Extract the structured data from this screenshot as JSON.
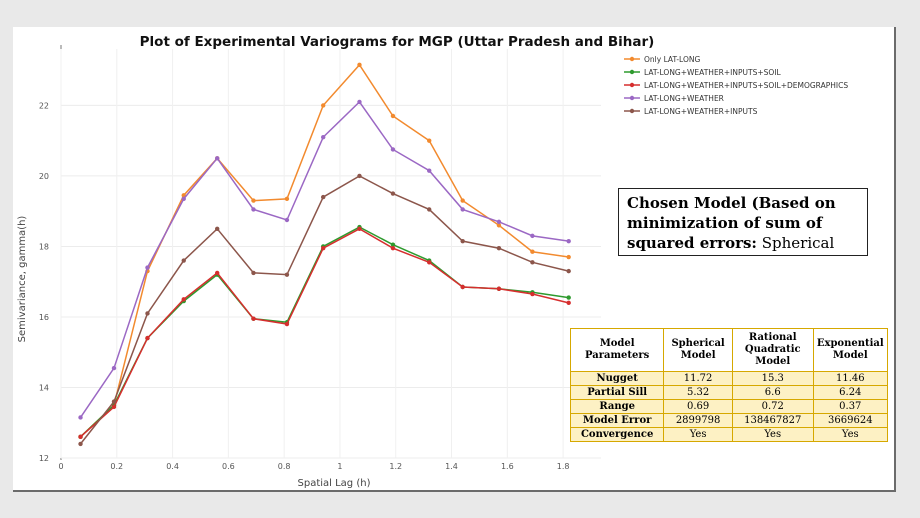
{
  "chart_data": {
    "type": "line",
    "title": "Plot of Experimental Variograms for MGP (Uttar Pradesh and Bihar)",
    "xlabel": "Spatial Lag (h)",
    "ylabel": "Semivariance, gamma(h)",
    "xlim": [
      0,
      1.9
    ],
    "ylim": [
      12,
      23.6
    ],
    "x_ticks": [
      "0",
      "0.2",
      "0.4",
      "0.6",
      "0.8",
      "1",
      "1.2",
      "1.4",
      "1.6",
      "1.8"
    ],
    "y_ticks": [
      "12",
      "14",
      "16",
      "18",
      "20",
      "22"
    ],
    "grid": true,
    "legend_position": "top-right",
    "x": [
      0.07,
      0.19,
      0.31,
      0.44,
      0.56,
      0.69,
      0.81,
      0.94,
      1.07,
      1.19,
      1.32,
      1.44,
      1.57,
      1.69,
      1.82
    ],
    "series": [
      {
        "name": "Only LAT-LONG",
        "color": "#f28a2e",
        "values": [
          12.6,
          13.5,
          17.3,
          19.45,
          20.5,
          19.3,
          19.35,
          22.0,
          23.15,
          21.7,
          21.0,
          19.3,
          18.6,
          17.85,
          17.7
        ]
      },
      {
        "name": "LAT-LONG+WEATHER+INPUTS+SOIL",
        "color": "#2e9a2e",
        "values": [
          12.6,
          13.5,
          15.4,
          16.45,
          17.2,
          15.95,
          15.85,
          18.0,
          18.55,
          18.05,
          17.6,
          16.85,
          16.8,
          16.7,
          16.55
        ]
      },
      {
        "name": "LAT-LONG+WEATHER+INPUTS+SOIL+DEMOGRAPHICS",
        "color": "#d62e2e",
        "values": [
          12.6,
          13.45,
          15.4,
          16.5,
          17.25,
          15.95,
          15.8,
          17.95,
          18.5,
          17.95,
          17.55,
          16.85,
          16.8,
          16.65,
          16.4
        ]
      },
      {
        "name": "LAT-LONG+WEATHER",
        "color": "#9b68c4",
        "values": [
          13.15,
          14.55,
          17.4,
          19.35,
          20.5,
          19.05,
          18.75,
          21.1,
          22.1,
          20.75,
          20.15,
          19.05,
          18.7,
          18.3,
          18.15
        ]
      },
      {
        "name": "LAT-LONG+WEATHER+INPUTS",
        "color": "#8c564b",
        "values": [
          12.4,
          13.6,
          16.1,
          17.6,
          18.5,
          17.25,
          17.2,
          19.4,
          20.0,
          19.5,
          19.05,
          18.15,
          17.95,
          17.55,
          17.3
        ]
      }
    ]
  },
  "chosen_model": {
    "bold_text": "Chosen Model (Based on minimization of sum of squared errors:",
    "normal_text": " Spherical"
  },
  "table": {
    "headers": [
      "Model Parameters",
      "Spherical Model",
      "Rational Quadratic Model",
      "Exponential Model"
    ],
    "rows": [
      [
        "Nugget",
        "11.72",
        "15.3",
        "11.46"
      ],
      [
        "Partial Sill",
        "5.32",
        "6.6",
        "6.24"
      ],
      [
        "Range",
        "0.69",
        "0.72",
        "0.37"
      ],
      [
        "Model Error",
        "2899798",
        "138467827",
        "3669624"
      ],
      [
        "Convergence",
        "Yes",
        "Yes",
        "Yes"
      ]
    ]
  }
}
